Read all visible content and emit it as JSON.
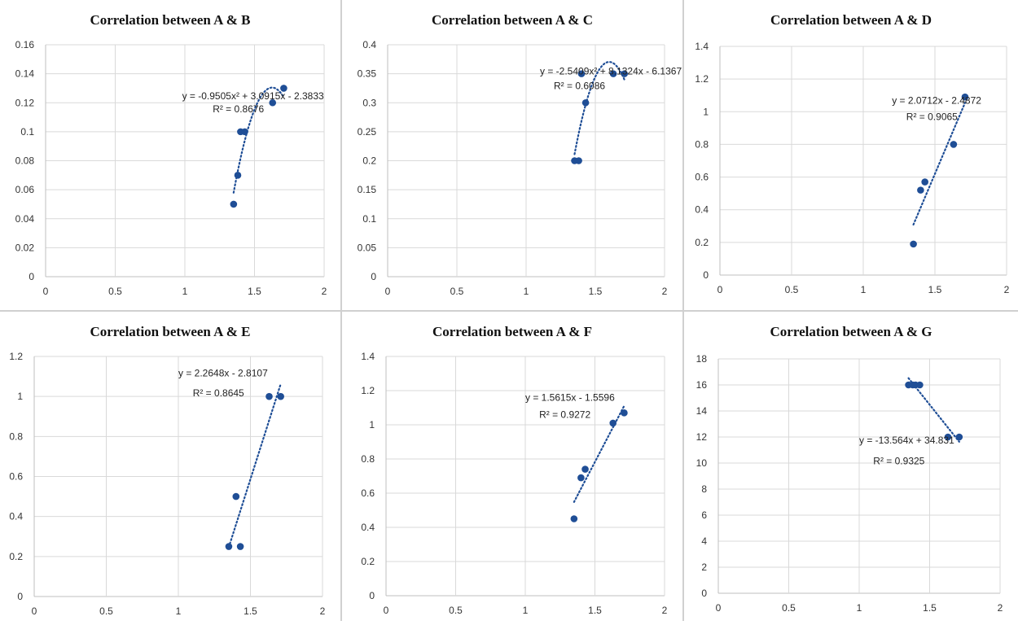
{
  "chart_data": [
    {
      "type": "scatter",
      "title": "Correlation between A & B",
      "xlim": [
        0,
        2
      ],
      "ylim": [
        0,
        0.16
      ],
      "xticks": [
        "0",
        "0.5",
        "1",
        "1.5",
        "2"
      ],
      "yticks": [
        "0",
        "0.02",
        "0.04",
        "0.06",
        "0.08",
        "0.1",
        "0.12",
        "0.14",
        "0.16"
      ],
      "points": [
        [
          1.35,
          0.05
        ],
        [
          1.38,
          0.07
        ],
        [
          1.4,
          0.1
        ],
        [
          1.43,
          0.1
        ],
        [
          1.63,
          0.12
        ],
        [
          1.71,
          0.13
        ]
      ],
      "trendline": {
        "kind": "poly2",
        "coef": [
          -0.9505,
          3.0915,
          -2.3833
        ]
      },
      "equation": "y = -0.9505x² + 3.0915x - 2.3833",
      "r2": "R² = 0.8676",
      "color": "#1f4e96"
    },
    {
      "type": "scatter",
      "title": "Correlation between A & C",
      "xlim": [
        0,
        2
      ],
      "ylim": [
        0,
        0.4
      ],
      "xticks": [
        "0",
        "0.5",
        "1",
        "1.5",
        "2"
      ],
      "yticks": [
        "0",
        "0.05",
        "0.1",
        "0.15",
        "0.2",
        "0.25",
        "0.3",
        "0.35",
        "0.4"
      ],
      "points": [
        [
          1.35,
          0.2
        ],
        [
          1.38,
          0.2
        ],
        [
          1.4,
          0.35
        ],
        [
          1.43,
          0.3
        ],
        [
          1.63,
          0.35
        ],
        [
          1.71,
          0.35
        ]
      ],
      "trendline": {
        "kind": "poly2",
        "coef": [
          -2.5409,
          8.1324,
          -6.1367
        ]
      },
      "equation": "y = -2.5409x² + 8.1324x - 6.1367",
      "r2": "R² = 0.6086",
      "color": "#1f4e96"
    },
    {
      "type": "scatter",
      "title": "Correlation between A & D",
      "xlim": [
        0,
        2
      ],
      "ylim": [
        0,
        1.4
      ],
      "xticks": [
        "0",
        "0.5",
        "1",
        "1.5",
        "2"
      ],
      "yticks": [
        "0",
        "0.2",
        "0.4",
        "0.6",
        "0.8",
        "1",
        "1.2",
        "1.4"
      ],
      "points": [
        [
          1.35,
          0.19
        ],
        [
          1.4,
          0.52
        ],
        [
          1.43,
          0.57
        ],
        [
          1.63,
          0.8
        ],
        [
          1.71,
          1.09
        ]
      ],
      "trendline": {
        "kind": "linear",
        "coef": [
          2.0712,
          -2.4872
        ]
      },
      "equation": "y = 2.0712x - 2.4872",
      "r2": "R² = 0.9065",
      "color": "#1f4e96"
    },
    {
      "type": "scatter",
      "title": "Correlation between A & E",
      "xlim": [
        0,
        2
      ],
      "ylim": [
        0,
        1.2
      ],
      "xticks": [
        "0",
        "0.5",
        "1",
        "1.5",
        "2"
      ],
      "yticks": [
        "0",
        "0.2",
        "0.4",
        "0.6",
        "0.8",
        "1",
        "1.2"
      ],
      "points": [
        [
          1.35,
          0.25
        ],
        [
          1.4,
          0.5
        ],
        [
          1.43,
          0.25
        ],
        [
          1.63,
          1.0
        ],
        [
          1.71,
          1.0
        ]
      ],
      "trendline": {
        "kind": "linear",
        "coef": [
          2.2648,
          -2.8107
        ]
      },
      "equation": "y = 2.2648x - 2.8107",
      "r2": "R² = 0.8645",
      "color": "#1f4e96"
    },
    {
      "type": "scatter",
      "title": "Correlation between A & F",
      "xlim": [
        0,
        2
      ],
      "ylim": [
        0,
        1.4
      ],
      "xticks": [
        "0",
        "0.5",
        "1",
        "1.5",
        "2"
      ],
      "yticks": [
        "0",
        "0.2",
        "0.4",
        "0.6",
        "0.8",
        "1",
        "1.2",
        "1.4"
      ],
      "points": [
        [
          1.35,
          0.45
        ],
        [
          1.4,
          0.69
        ],
        [
          1.43,
          0.74
        ],
        [
          1.63,
          1.01
        ],
        [
          1.71,
          1.07
        ]
      ],
      "trendline": {
        "kind": "linear",
        "coef": [
          1.5615,
          -1.5596
        ]
      },
      "equation": "y = 1.5615x - 1.5596",
      "r2": "R² = 0.9272",
      "color": "#1f4e96"
    },
    {
      "type": "scatter",
      "title": "Correlation between A & G",
      "xlim": [
        0,
        2
      ],
      "ylim": [
        0,
        18
      ],
      "xticks": [
        "0",
        "0.5",
        "1",
        "1.5",
        "2"
      ],
      "yticks": [
        "0",
        "2",
        "4",
        "6",
        "8",
        "10",
        "12",
        "14",
        "16",
        "18"
      ],
      "points": [
        [
          1.35,
          16
        ],
        [
          1.38,
          16
        ],
        [
          1.4,
          16
        ],
        [
          1.43,
          16
        ],
        [
          1.63,
          12
        ],
        [
          1.71,
          12
        ]
      ],
      "trendline": {
        "kind": "linear",
        "coef": [
          -13.564,
          34.831
        ]
      },
      "equation": "y = -13.564x + 34.831",
      "r2": "R² = 0.9325",
      "color": "#1f4e96"
    }
  ]
}
